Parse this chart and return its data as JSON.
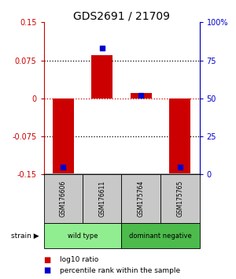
{
  "title": "GDS2691 / 21709",
  "samples": [
    "GSM176606",
    "GSM176611",
    "GSM175764",
    "GSM175765"
  ],
  "log10_ratio": [
    -0.148,
    0.085,
    0.01,
    -0.148
  ],
  "percentile_rank": [
    5.0,
    83.0,
    52.0,
    5.0
  ],
  "ylim_left": [
    -0.15,
    0.15
  ],
  "ylim_right": [
    0,
    100
  ],
  "yticks_left": [
    -0.15,
    -0.075,
    0,
    0.075,
    0.15
  ],
  "yticks_right": [
    0,
    25,
    50,
    75,
    100
  ],
  "ytick_labels_left": [
    "-0.15",
    "-0.075",
    "0",
    "0.075",
    "0.15"
  ],
  "ytick_labels_right": [
    "0",
    "25",
    "50",
    "75",
    "100%"
  ],
  "dotted_lines_black": [
    -0.075,
    0.075
  ],
  "dotted_line_red": 0,
  "groups": [
    {
      "label": "wild type",
      "samples": [
        0,
        1
      ],
      "color": "#90EE90"
    },
    {
      "label": "dominant negative",
      "samples": [
        2,
        3
      ],
      "color": "#4CBB4C"
    }
  ],
  "bar_color": "#CC0000",
  "dot_color": "#0000CC",
  "bar_width": 0.55,
  "dot_size": 5,
  "strain_label": "strain",
  "legend_red": "log10 ratio",
  "legend_blue": "percentile rank within the sample",
  "title_fontsize": 10,
  "axis_label_color_left": "#CC0000",
  "axis_label_color_right": "#0000CC",
  "background_color": "#ffffff",
  "gray_sample_box": "#C8C8C8"
}
